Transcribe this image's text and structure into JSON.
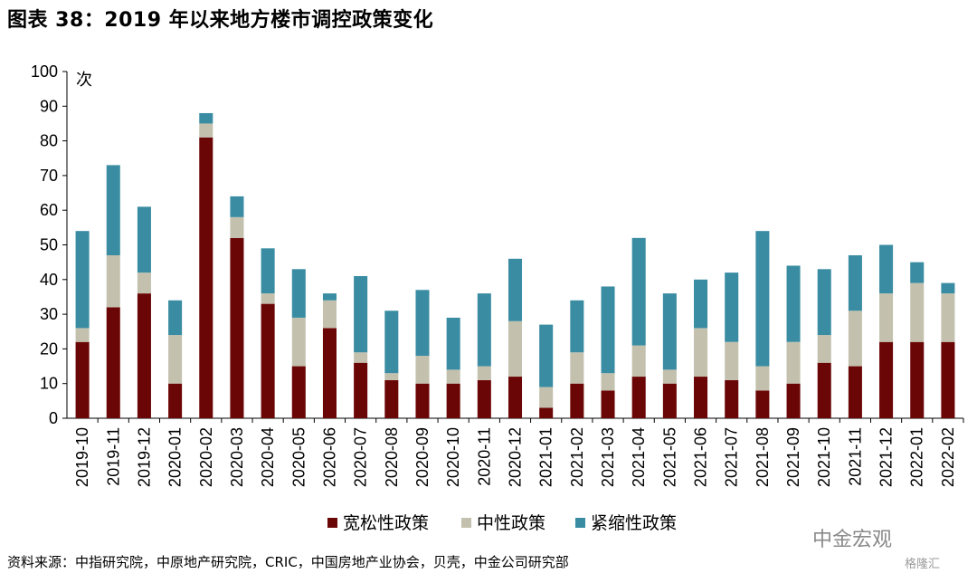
{
  "header": {
    "title": "图表 38：2019 年以来地方楼市调控政策变化"
  },
  "footer": {
    "source": "资料来源：中指研究院，中原地产研究院，CRIC，中国房地产业协会，贝壳，中金公司研究部"
  },
  "watermark": {
    "main": "中金宏观",
    "secondary": "格隆汇"
  },
  "colors": {
    "loose": "#6b0606",
    "neutral": "#c3c1ae",
    "tight": "#3a8ca2"
  },
  "chart_data": {
    "type": "bar",
    "stacked": true,
    "categories": [
      "2019-10",
      "2019-11",
      "2019-12",
      "2020-01",
      "2020-02",
      "2020-03",
      "2020-04",
      "2020-05",
      "2020-06",
      "2020-07",
      "2020-08",
      "2020-09",
      "2020-10",
      "2020-11",
      "2020-12",
      "2021-01",
      "2021-02",
      "2021-03",
      "2021-04",
      "2021-05",
      "2021-06",
      "2021-07",
      "2021-08",
      "2021-09",
      "2021-10",
      "2021-11",
      "2021-12",
      "2022-01",
      "2022-02"
    ],
    "series": [
      {
        "name": "宽松性政策",
        "values": [
          22,
          32,
          36,
          10,
          81,
          52,
          33,
          15,
          26,
          16,
          11,
          10,
          10,
          11,
          12,
          3,
          10,
          8,
          12,
          10,
          12,
          11,
          8,
          10,
          16,
          15,
          22,
          22,
          22
        ]
      },
      {
        "name": "中性政策",
        "values": [
          4,
          15,
          6,
          14,
          4,
          6,
          3,
          14,
          8,
          3,
          2,
          8,
          4,
          4,
          16,
          6,
          9,
          5,
          9,
          4,
          14,
          11,
          7,
          12,
          8,
          16,
          14,
          17,
          14
        ]
      },
      {
        "name": "紧缩性政策",
        "values": [
          28,
          26,
          19,
          10,
          3,
          6,
          13,
          14,
          2,
          22,
          18,
          19,
          15,
          21,
          18,
          18,
          15,
          25,
          31,
          22,
          14,
          20,
          39,
          22,
          19,
          16,
          14,
          6,
          3
        ]
      }
    ],
    "ylabel": "次",
    "ylim": [
      0,
      100
    ],
    "yticks": [
      0,
      10,
      20,
      30,
      40,
      50,
      60,
      70,
      80,
      90,
      100
    ],
    "legend_position": "bottom"
  }
}
